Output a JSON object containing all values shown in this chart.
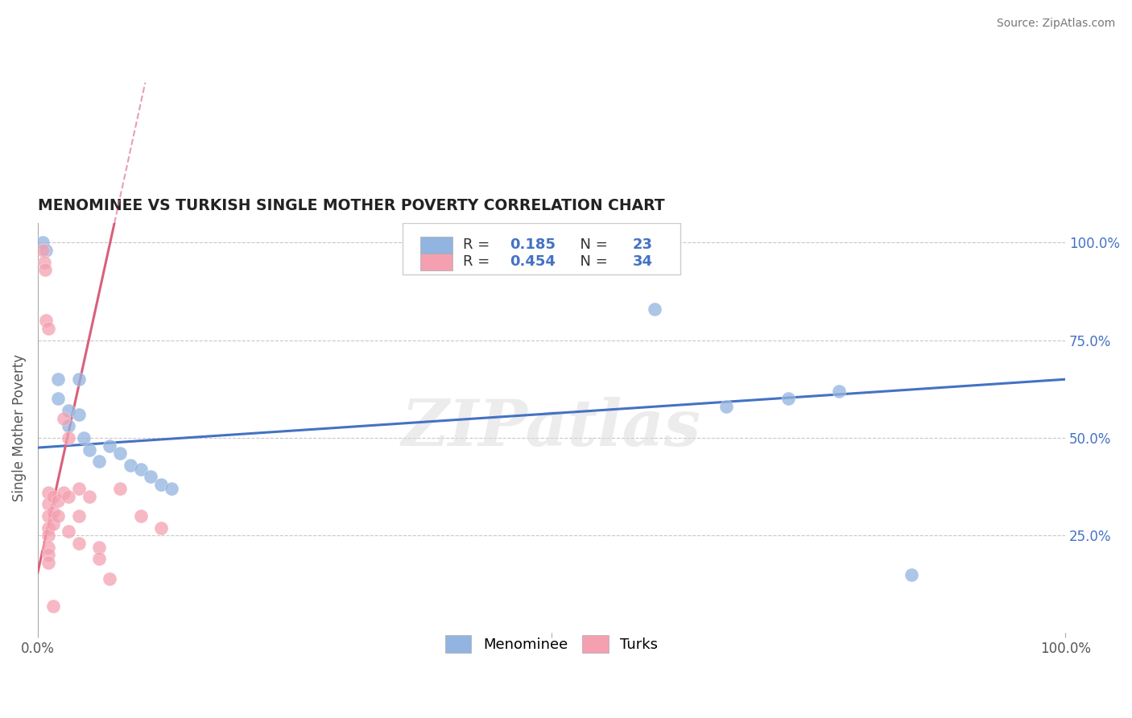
{
  "title": "MENOMINEE VS TURKISH SINGLE MOTHER POVERTY CORRELATION CHART",
  "source": "Source: ZipAtlas.com",
  "ylabel": "Single Mother Poverty",
  "watermark": "ZIPatlas",
  "xlim": [
    0.0,
    1.0
  ],
  "ylim": [
    0.0,
    1.05
  ],
  "xtick_positions": [
    0.0,
    0.5,
    1.0
  ],
  "xtick_labels": [
    "0.0%",
    "",
    "100.0%"
  ],
  "ytick_vals": [
    0.25,
    0.5,
    0.75,
    1.0
  ],
  "ytick_labels": [
    "25.0%",
    "50.0%",
    "75.0%",
    "100.0%"
  ],
  "legend_labels": [
    "Menominee",
    "Turks"
  ],
  "menominee_R": "0.185",
  "menominee_N": "23",
  "turks_R": "0.454",
  "turks_N": "34",
  "menominee_color": "#92b4e0",
  "turks_color": "#f4a0b0",
  "menominee_line_color": "#4472c4",
  "turks_line_color": "#d9607a",
  "grid_color": "#c8c8c8",
  "title_color": "#222222",
  "R_label_color": "#4472c4",
  "menominee_points": [
    [
      0.005,
      1.0
    ],
    [
      0.008,
      0.98
    ],
    [
      0.02,
      0.65
    ],
    [
      0.02,
      0.6
    ],
    [
      0.03,
      0.57
    ],
    [
      0.03,
      0.53
    ],
    [
      0.04,
      0.65
    ],
    [
      0.04,
      0.56
    ],
    [
      0.045,
      0.5
    ],
    [
      0.05,
      0.47
    ],
    [
      0.06,
      0.44
    ],
    [
      0.07,
      0.48
    ],
    [
      0.08,
      0.46
    ],
    [
      0.09,
      0.43
    ],
    [
      0.1,
      0.42
    ],
    [
      0.11,
      0.4
    ],
    [
      0.12,
      0.38
    ],
    [
      0.13,
      0.37
    ],
    [
      0.6,
      0.83
    ],
    [
      0.67,
      0.58
    ],
    [
      0.73,
      0.6
    ],
    [
      0.78,
      0.62
    ],
    [
      0.85,
      0.15
    ]
  ],
  "turks_points": [
    [
      0.005,
      0.98
    ],
    [
      0.006,
      0.95
    ],
    [
      0.007,
      0.93
    ],
    [
      0.008,
      0.8
    ],
    [
      0.01,
      0.78
    ],
    [
      0.01,
      0.36
    ],
    [
      0.01,
      0.33
    ],
    [
      0.01,
      0.3
    ],
    [
      0.01,
      0.27
    ],
    [
      0.01,
      0.25
    ],
    [
      0.01,
      0.22
    ],
    [
      0.01,
      0.2
    ],
    [
      0.01,
      0.18
    ],
    [
      0.015,
      0.35
    ],
    [
      0.015,
      0.31
    ],
    [
      0.015,
      0.28
    ],
    [
      0.02,
      0.34
    ],
    [
      0.02,
      0.3
    ],
    [
      0.025,
      0.55
    ],
    [
      0.025,
      0.36
    ],
    [
      0.03,
      0.5
    ],
    [
      0.03,
      0.35
    ],
    [
      0.04,
      0.37
    ],
    [
      0.04,
      0.3
    ],
    [
      0.05,
      0.35
    ],
    [
      0.06,
      0.22
    ],
    [
      0.08,
      0.37
    ],
    [
      0.1,
      0.3
    ],
    [
      0.12,
      0.27
    ],
    [
      0.03,
      0.26
    ],
    [
      0.04,
      0.23
    ],
    [
      0.06,
      0.19
    ],
    [
      0.07,
      0.14
    ],
    [
      0.015,
      0.07
    ]
  ],
  "men_line_x0": 0.0,
  "men_line_y0": 0.475,
  "men_line_x1": 1.0,
  "men_line_y1": 0.65,
  "turk_line_slope": 12.0,
  "turk_line_intercept": 0.155
}
